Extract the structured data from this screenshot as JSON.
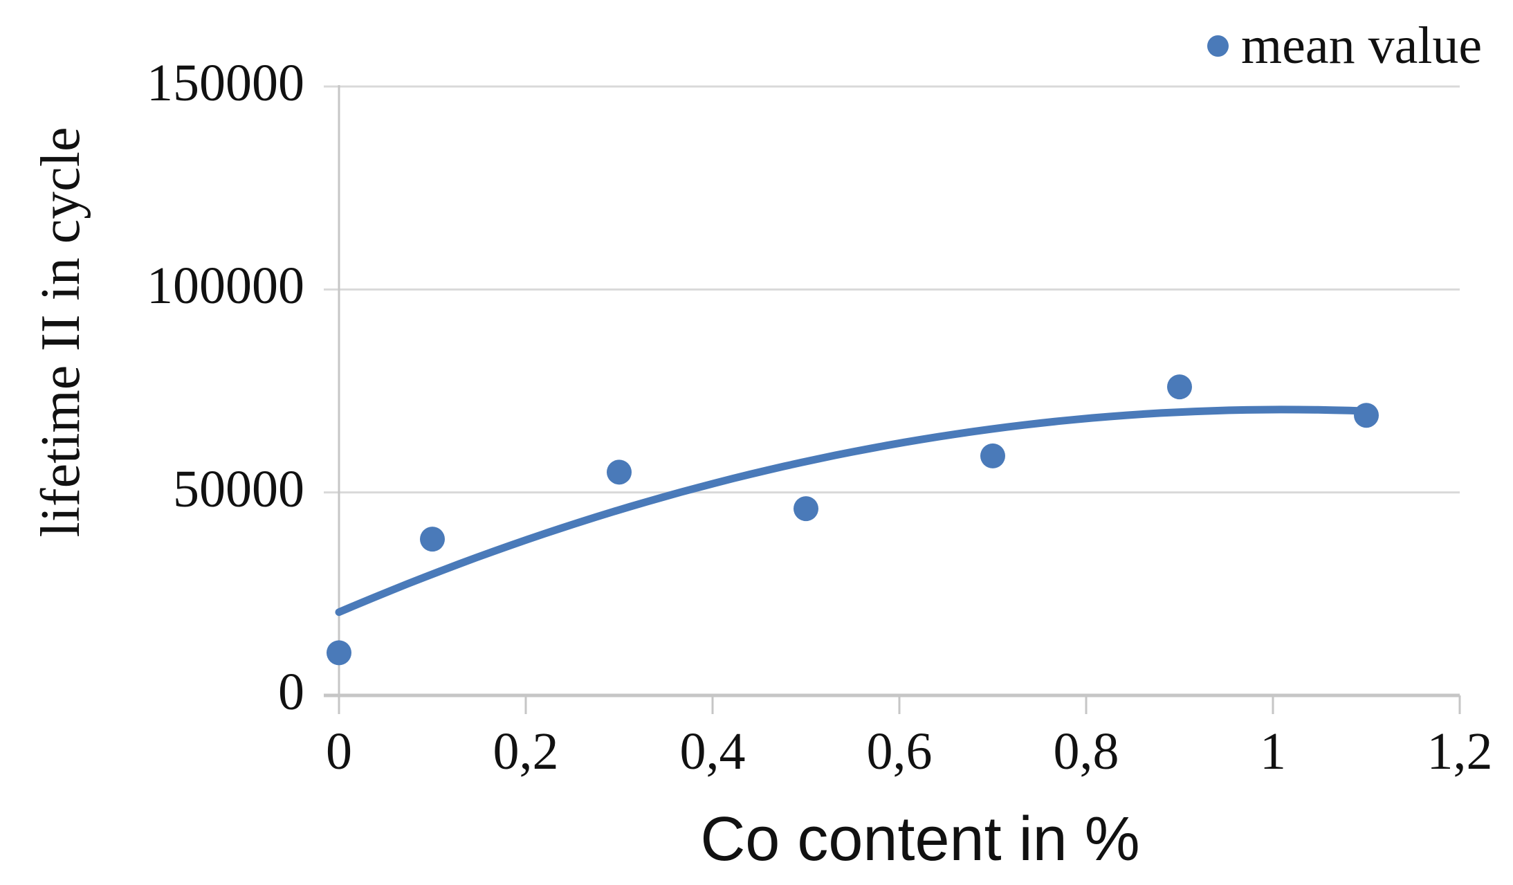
{
  "chart_data": {
    "type": "scatter",
    "title": "",
    "xlabel": "Co content in %",
    "ylabel": "lifetime II in cycle",
    "xlim": [
      0,
      1.2
    ],
    "ylim": [
      0,
      150000
    ],
    "grid": "horizontal",
    "x_ticks": [
      {
        "value": 0,
        "label": "0"
      },
      {
        "value": 0.2,
        "label": "0,2"
      },
      {
        "value": 0.4,
        "label": "0,4"
      },
      {
        "value": 0.6,
        "label": "0,6"
      },
      {
        "value": 0.8,
        "label": "0,8"
      },
      {
        "value": 1.0,
        "label": "1"
      },
      {
        "value": 1.2,
        "label": "1,2"
      }
    ],
    "y_ticks": [
      {
        "value": 0,
        "label": "0"
      },
      {
        "value": 50000,
        "label": "50000"
      },
      {
        "value": 100000,
        "label": "100000"
      },
      {
        "value": 150000,
        "label": "150000"
      }
    ],
    "series": [
      {
        "name": "mean value",
        "marker": "circle",
        "points": [
          {
            "x": 0.0,
            "y": 10500
          },
          {
            "x": 0.1,
            "y": 38500
          },
          {
            "x": 0.3,
            "y": 55000
          },
          {
            "x": 0.5,
            "y": 46000
          },
          {
            "x": 0.7,
            "y": 59000
          },
          {
            "x": 0.9,
            "y": 76000
          },
          {
            "x": 1.1,
            "y": 69000
          }
        ]
      }
    ],
    "trendline": {
      "kind": "polynomial-2",
      "coefficients": {
        "a": 20500,
        "b": 98600,
        "c": -48700
      },
      "x_start": 0,
      "x_end": 1.1,
      "approx_points": [
        {
          "x": 0.0,
          "y": 20500
        },
        {
          "x": 0.2,
          "y": 38300
        },
        {
          "x": 0.4,
          "y": 52150
        },
        {
          "x": 0.6,
          "y": 62100
        },
        {
          "x": 0.8,
          "y": 68200
        },
        {
          "x": 1.0,
          "y": 70400
        },
        {
          "x": 1.1,
          "y": 70000
        }
      ]
    },
    "legend": {
      "label": "mean value",
      "position": "top-right"
    },
    "colors": {
      "marker": "#4a7ab9",
      "trend": "#4a7ab9",
      "gridline": "#d9d9d9",
      "axis": "#c6c6c6",
      "text": "#111111",
      "background": "#ffffff"
    }
  }
}
